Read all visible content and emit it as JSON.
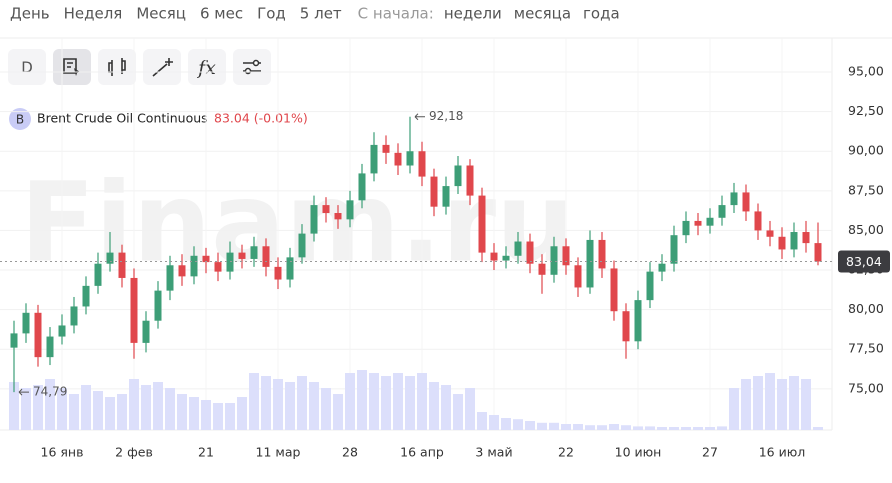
{
  "toolbar": {
    "periods": [
      "День",
      "Неделя",
      "Месяц",
      "6 мес",
      "Год",
      "5 лет"
    ],
    "since_label": "С начала:",
    "since": [
      "недели",
      "месяца",
      "года"
    ],
    "d_button": "D",
    "fx_button": "fx"
  },
  "watermark": "Finam.ru",
  "chart_data": {
    "type": "candlestick",
    "instrument_badge": "B",
    "instrument": "Brent Crude Oil Continuous",
    "last_label": "83.04 (-0.01%)",
    "categories": [
      null,
      null,
      null,
      null,
      "16 янв",
      null,
      null,
      null,
      null,
      null,
      "2 фев",
      null,
      null,
      null,
      null,
      null,
      "21",
      null,
      null,
      null,
      null,
      null,
      "11 мар",
      null,
      null,
      null,
      null,
      null,
      "28",
      null,
      null,
      null,
      null,
      null,
      "16 апр",
      null,
      null,
      null,
      null,
      null,
      "3 май",
      null,
      null,
      null,
      null,
      null,
      "22",
      null,
      null,
      null,
      null,
      null,
      "10 июн",
      null,
      null,
      null,
      null,
      null,
      "27",
      null,
      null,
      null,
      null,
      null,
      "16 июл",
      null,
      null,
      null
    ],
    "open": [
      77.6,
      78.5,
      79.8,
      77.0,
      78.3,
      79.0,
      80.2,
      81.5,
      82.9,
      83.6,
      82.0,
      77.9,
      79.3,
      81.2,
      82.8,
      82.1,
      83.4,
      83.0,
      82.4,
      83.6,
      83.2,
      84.0,
      82.7,
      81.9,
      83.3,
      84.8,
      86.6,
      86.1,
      85.7,
      86.9,
      88.6,
      90.4,
      89.9,
      89.1,
      90.0,
      88.4,
      86.5,
      87.8,
      89.1,
      87.2,
      83.6,
      83.1,
      83.4,
      84.3,
      82.9,
      82.2,
      84.0,
      82.8,
      81.4,
      84.4,
      82.6,
      79.9,
      78.0,
      80.6,
      82.4,
      82.9,
      84.7,
      85.6,
      85.3,
      85.8,
      86.6,
      87.4,
      86.2,
      85.0,
      84.6,
      83.8,
      84.9,
      84.2
    ],
    "high": [
      79.3,
      80.4,
      80.3,
      78.9,
      79.7,
      80.8,
      82.1,
      83.6,
      84.9,
      84.1,
      82.6,
      79.9,
      81.8,
      83.4,
      83.5,
      84.0,
      83.9,
      83.6,
      84.3,
      84.1,
      84.6,
      84.5,
      83.3,
      83.9,
      85.4,
      87.2,
      87.1,
      86.6,
      87.5,
      89.2,
      91.2,
      91.0,
      90.5,
      92.18,
      90.6,
      88.9,
      88.4,
      89.7,
      89.5,
      87.7,
      84.2,
      84.0,
      84.9,
      84.8,
      83.5,
      84.6,
      84.5,
      83.3,
      85.0,
      84.9,
      83.1,
      80.4,
      81.2,
      83.0,
      83.5,
      85.3,
      86.2,
      86.1,
      86.4,
      87.2,
      88.0,
      87.9,
      86.7,
      85.6,
      85.2,
      85.5,
      85.6,
      85.5
    ],
    "low": [
      74.79,
      77.9,
      76.4,
      76.5,
      77.8,
      78.5,
      79.7,
      81.0,
      82.4,
      81.4,
      76.9,
      77.3,
      78.8,
      80.6,
      81.5,
      81.6,
      82.3,
      81.8,
      81.9,
      82.6,
      82.7,
      82.1,
      81.3,
      81.4,
      82.9,
      84.3,
      85.5,
      85.1,
      85.2,
      86.4,
      88.1,
      89.2,
      88.5,
      88.6,
      87.8,
      85.9,
      86.0,
      87.3,
      86.6,
      83.0,
      82.5,
      82.6,
      82.9,
      82.3,
      81.0,
      81.7,
      82.2,
      80.8,
      81.0,
      82.0,
      79.3,
      76.9,
      77.5,
      80.1,
      81.8,
      82.4,
      84.2,
      84.7,
      84.8,
      85.3,
      86.1,
      85.6,
      84.4,
      84.0,
      83.2,
      83.3,
      83.6,
      82.8
    ],
    "close": [
      78.5,
      79.8,
      77.0,
      78.3,
      79.0,
      80.2,
      81.5,
      82.9,
      83.6,
      82.0,
      77.9,
      79.3,
      81.2,
      82.8,
      82.1,
      83.4,
      83.0,
      82.4,
      83.6,
      83.2,
      84.0,
      82.7,
      81.9,
      83.3,
      84.8,
      86.6,
      86.1,
      85.7,
      86.9,
      88.6,
      90.4,
      89.9,
      89.1,
      90.0,
      88.4,
      86.5,
      87.8,
      89.1,
      87.2,
      83.6,
      83.1,
      83.4,
      84.3,
      82.9,
      82.2,
      84.0,
      82.8,
      81.4,
      84.4,
      82.6,
      79.9,
      78.0,
      80.6,
      82.4,
      82.9,
      84.7,
      85.6,
      85.3,
      85.8,
      86.6,
      87.4,
      86.2,
      85.0,
      84.6,
      83.8,
      84.9,
      84.2,
      83.04
    ],
    "volume": [
      80,
      70,
      75,
      85,
      70,
      60,
      75,
      65,
      55,
      60,
      85,
      75,
      80,
      70,
      60,
      55,
      50,
      45,
      45,
      55,
      95,
      90,
      85,
      80,
      90,
      80,
      70,
      60,
      95,
      100,
      95,
      90,
      95,
      90,
      95,
      80,
      75,
      60,
      70,
      30,
      25,
      20,
      18,
      15,
      12,
      12,
      10,
      10,
      8,
      8,
      10,
      8,
      6,
      6,
      5,
      5,
      5,
      5,
      5,
      6,
      70,
      85,
      90,
      95,
      85,
      90,
      85,
      5
    ],
    "up_color": "#3d9e77",
    "down_color": "#e0474c",
    "volume_color": "#dcdffb",
    "ylim": [
      72.4,
      97.15
    ],
    "yticks": [
      {
        "value": 75,
        "label": "75,00"
      },
      {
        "value": 77.5,
        "label": "77,50"
      },
      {
        "value": 80,
        "label": "80,00"
      },
      {
        "value": 82.5,
        "label": "82,50"
      },
      {
        "value": 85,
        "label": "85,00"
      },
      {
        "value": 87.5,
        "label": "87,50"
      },
      {
        "value": 90,
        "label": "90,00"
      },
      {
        "value": 92.5,
        "label": "92,50"
      },
      {
        "value": 95,
        "label": "95,00"
      }
    ],
    "last_price": {
      "value": 83.04,
      "label": "83,04"
    },
    "max_annotation": {
      "value": 92.18,
      "label": "92,18"
    },
    "min_annotation": {
      "value": 74.79,
      "label": "74,79"
    },
    "grid": true
  }
}
